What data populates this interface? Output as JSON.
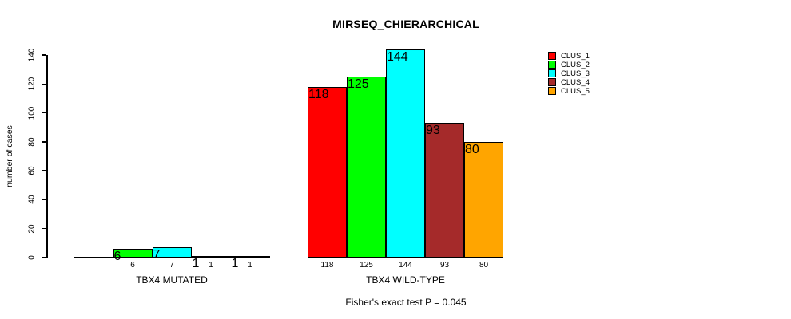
{
  "chart_data": {
    "type": "bar",
    "title": "MIRSEQ_CHIERARCHICAL",
    "ylabel": "number of cases",
    "ylim": [
      0,
      140
    ],
    "yticks": [
      0,
      20,
      40,
      60,
      80,
      100,
      120,
      140
    ],
    "grid": false,
    "legend_position": "top-right",
    "categories": [
      "TBX4 MUTATED",
      "TBX4 WILD-TYPE"
    ],
    "series": [
      {
        "name": "CLUS_1",
        "color": "#ff0000",
        "values": [
          0,
          118
        ]
      },
      {
        "name": "CLUS_2",
        "color": "#00ff00",
        "values": [
          6,
          125
        ]
      },
      {
        "name": "CLUS_3",
        "color": "#00ffff",
        "values": [
          7,
          144
        ]
      },
      {
        "name": "CLUS_4",
        "color": "#a52a2a",
        "values": [
          1,
          93
        ]
      },
      {
        "name": "CLUS_5",
        "color": "#ffa500",
        "values": [
          1,
          80
        ]
      }
    ],
    "bar_labels": [
      [
        "",
        "6",
        "7",
        "1",
        "1"
      ],
      [
        "118",
        "125",
        "144",
        "93",
        "80"
      ]
    ],
    "footnote": "Fisher's exact test P = 0.045"
  }
}
